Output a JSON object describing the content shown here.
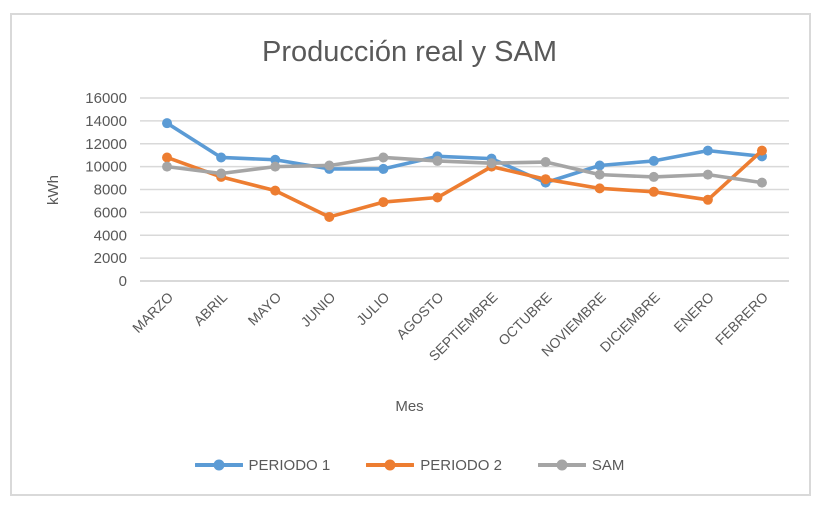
{
  "chart_data": {
    "type": "line",
    "title": "Producción real y SAM",
    "xlabel": "Mes",
    "ylabel": "kWh",
    "ylim": [
      0,
      16000
    ],
    "ytick_step": 2000,
    "grid": true,
    "legend_position": "bottom",
    "categories": [
      "MARZO",
      "ABRIL",
      "MAYO",
      "JUNIO",
      "JULIO",
      "AGOSTO",
      "SEPTIEMBRE",
      "OCTUBRE",
      "NOVIEMBRE",
      "DICIEMBRE",
      "ENERO",
      "FEBRERO"
    ],
    "series": [
      {
        "name": "PERIODO 1",
        "color": "#5B9BD5",
        "values": [
          13800,
          10800,
          10600,
          9800,
          9800,
          10900,
          10700,
          8600,
          10100,
          10500,
          11400,
          10900
        ]
      },
      {
        "name": "PERIODO 2",
        "color": "#ED7D31",
        "values": [
          10800,
          9100,
          7900,
          5600,
          6900,
          7300,
          10000,
          8900,
          8100,
          7800,
          7100,
          11400
        ]
      },
      {
        "name": "SAM",
        "color": "#A5A5A5",
        "values": [
          10000,
          9400,
          10000,
          10100,
          10800,
          10500,
          10300,
          10400,
          9300,
          9100,
          9300,
          8600
        ]
      }
    ]
  },
  "styles": {
    "text_color": "#595959",
    "gridline_color": "#D9D9D9",
    "axis_line_color": "#D9D9D9",
    "frame_border_color": "#D9D9D9",
    "background": "#ffffff"
  }
}
